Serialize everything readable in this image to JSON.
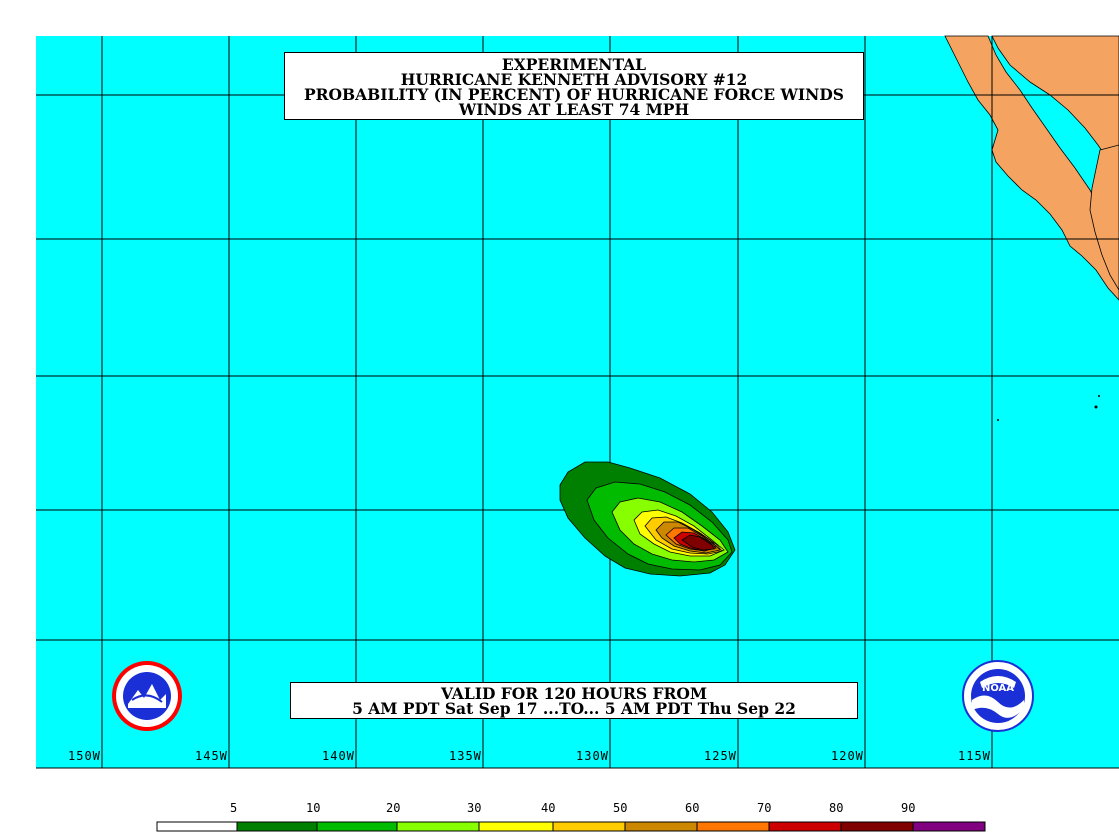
{
  "title": {
    "line1": "EXPERIMENTAL",
    "line2": "HURRICANE KENNETH ADVISORY #12",
    "line3": "PROBABILITY (IN PERCENT) OF HURRICANE FORCE WINDS",
    "line4": "WINDS AT LEAST 74 MPH"
  },
  "validity": {
    "line1": "VALID FOR 120 HOURS FROM",
    "line2": "5 AM PDT Sat Sep 17 ...TO... 5 AM PDT Thu Sep 22"
  },
  "longitude_labels": [
    "150W",
    "145W",
    "140W",
    "135W",
    "130W",
    "125W",
    "120W",
    "115W"
  ],
  "legend": {
    "ticks": [
      "5",
      "10",
      "20",
      "30",
      "40",
      "50",
      "60",
      "70",
      "80",
      "90"
    ],
    "colors": [
      "#ffffff",
      "#008000",
      "#00bb00",
      "#88ff00",
      "#ffff00",
      "#ffcc00",
      "#cc8800",
      "#ff7700",
      "#cc0000",
      "#800000",
      "#800080"
    ]
  },
  "colors": {
    "ocean": "#00ffff",
    "land": "#f4a460",
    "grid": "#000000"
  },
  "logos": {
    "left": "nws-logo",
    "right": "noaa-logo",
    "right_text": "NOAA"
  }
}
